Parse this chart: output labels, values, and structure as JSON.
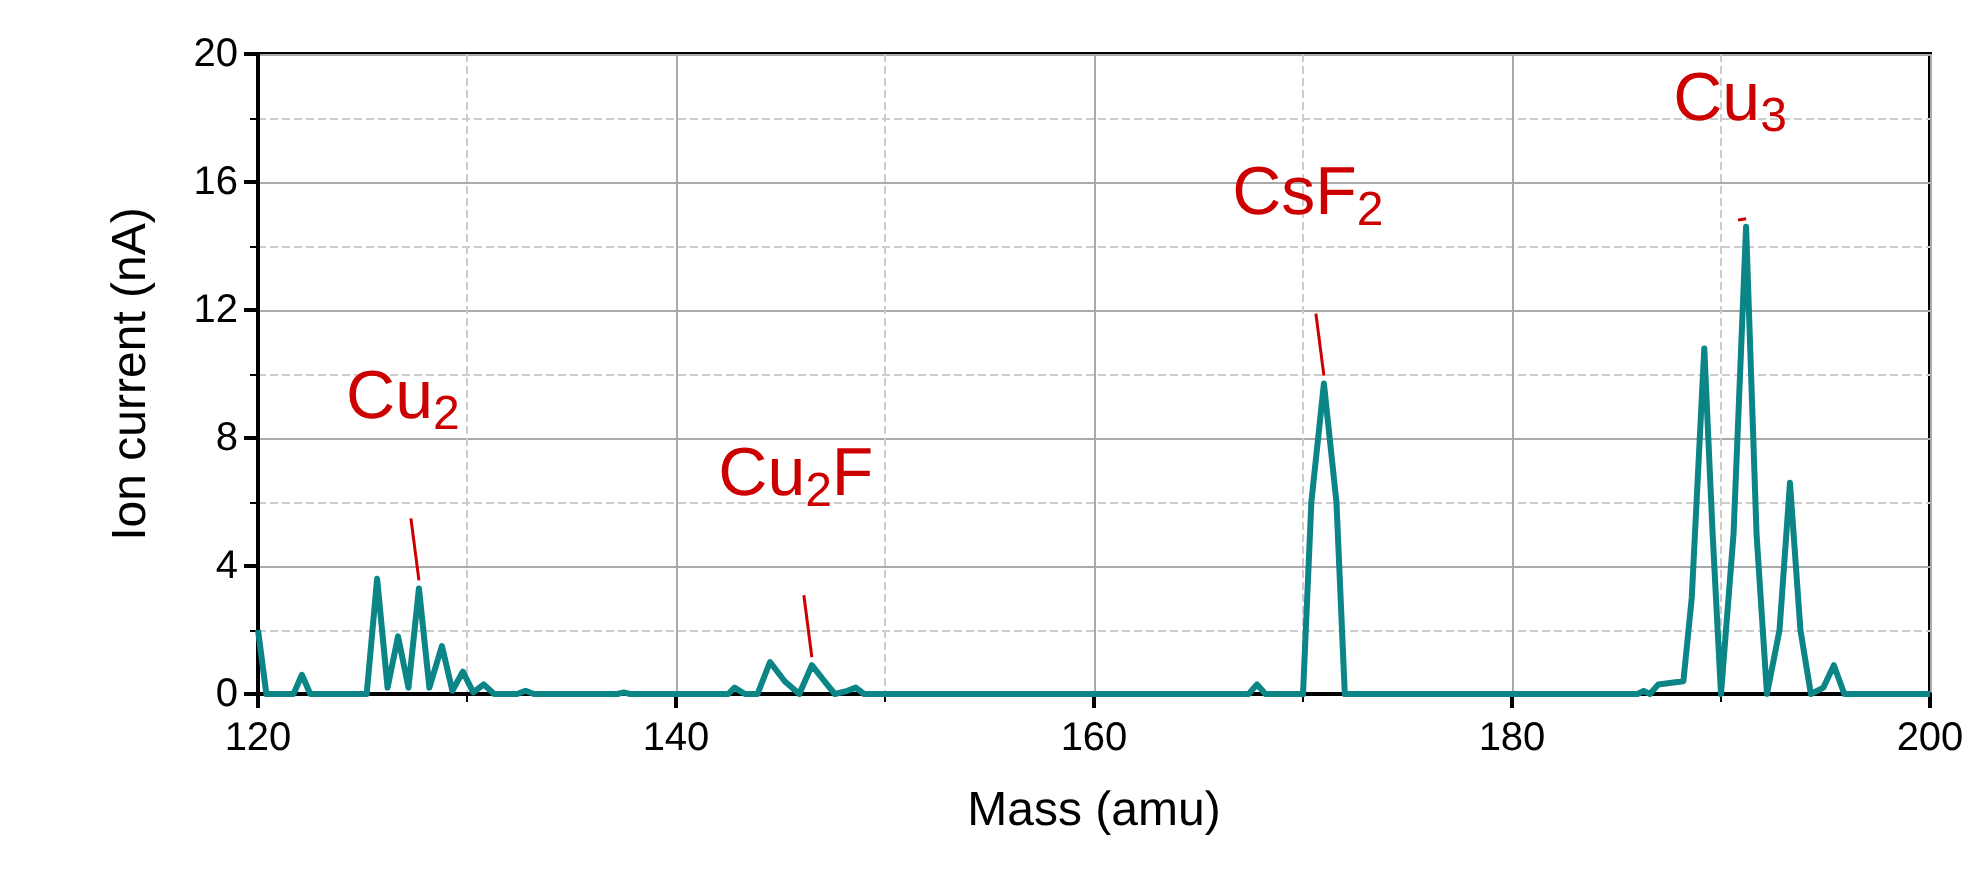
{
  "chart_data": {
    "type": "line",
    "xlabel": "Mass (amu)",
    "ylabel": "Ion current (nA)",
    "xlim": [
      120,
      200
    ],
    "xticks": [
      120,
      140,
      160,
      180,
      200
    ],
    "ylim": [
      0,
      20
    ],
    "yticks": [
      0,
      4,
      8,
      12,
      16,
      20
    ],
    "grid": true,
    "marker": "none",
    "line_style": "solid",
    "series": [
      {
        "color": "#0b8585",
        "x": [
          120,
          120.4,
          121.7,
          122.1,
          122.5,
          125.2,
          125.7,
          126.2,
          126.7,
          127.2,
          127.7,
          128.2,
          128.8,
          129.3,
          129.8,
          130.3,
          130.8,
          131.3,
          132.4,
          132.8,
          133.2,
          137.2,
          137.5,
          137.8,
          142.5,
          142.8,
          143.3,
          143.9,
          144.5,
          145.2,
          145.9,
          146.5,
          147.1,
          147.6,
          148.2,
          148.6,
          149.0,
          167.4,
          167.8,
          168.2,
          170.0,
          170.4,
          171.0,
          171.6,
          172.0,
          186.0,
          186.3,
          186.6,
          187.0,
          188.2,
          188.6,
          189.2,
          189.6,
          190.0,
          190.6,
          191.2,
          191.7,
          192.2,
          192.8,
          193.3,
          193.8,
          194.3,
          194.9,
          195.4,
          195.9,
          200
        ],
        "values": [
          2.0,
          0,
          0,
          0.6,
          0,
          0,
          3.6,
          0.2,
          1.8,
          0.2,
          3.3,
          0.2,
          1.5,
          0.1,
          0.7,
          0.05,
          0.3,
          0,
          0,
          0.1,
          0,
          0,
          0.05,
          0,
          0,
          0.2,
          0,
          0,
          1.0,
          0.4,
          0,
          0.9,
          0.4,
          0,
          0.1,
          0.2,
          0,
          0,
          0.3,
          0,
          0,
          6,
          9.7,
          6,
          0,
          0,
          0.1,
          0,
          0.3,
          0.4,
          3,
          10.8,
          5,
          0,
          5,
          14.6,
          5,
          0,
          2,
          6.6,
          2,
          0,
          0.2,
          0.9,
          0,
          0
        ]
      }
    ],
    "annotations": [
      {
        "text": "Cu$_{2}$",
        "x": 127.7,
        "y": 3.3
      },
      {
        "text": "Cu$_{2}$F",
        "x": 146.5,
        "y": 0.9
      },
      {
        "text": "CsF$_{2}$",
        "x": 171.0,
        "y": 9.7
      },
      {
        "text": "Cu$_{3}$",
        "x": 191.2,
        "y": 14.6
      }
    ]
  }
}
